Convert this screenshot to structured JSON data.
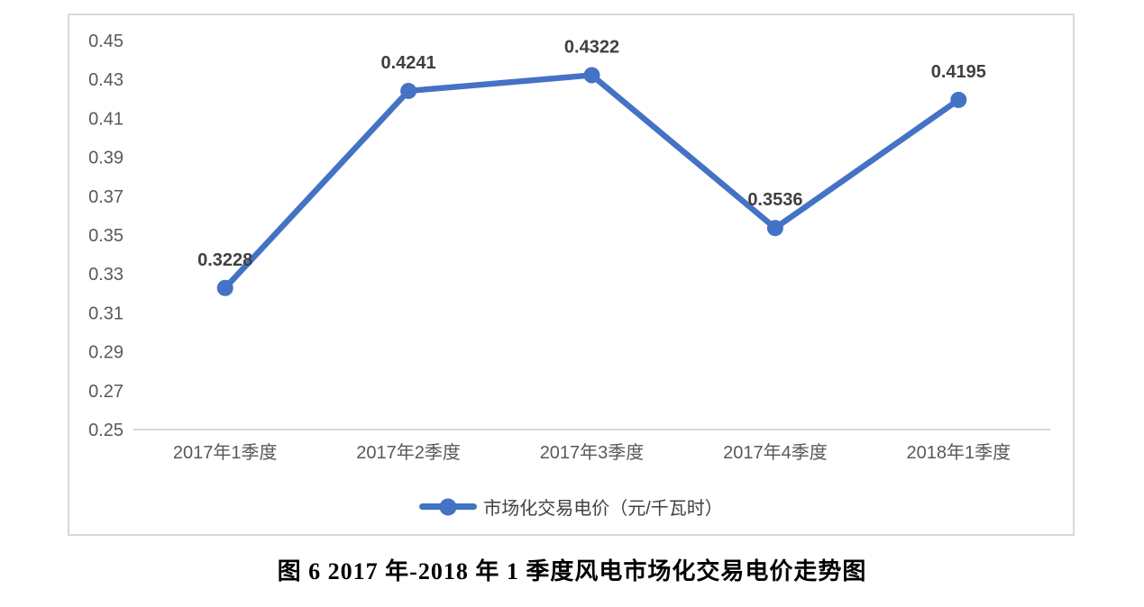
{
  "chart_data": {
    "type": "line",
    "categories": [
      "2017年1季度",
      "2017年2季度",
      "2017年3季度",
      "2017年4季度",
      "2018年1季度"
    ],
    "series": [
      {
        "name": "市场化交易电价（元/千瓦时）",
        "values": [
          0.3228,
          0.4241,
          0.4322,
          0.3536,
          0.4195
        ],
        "data_labels": [
          "0.3228",
          "0.4241",
          "0.4322",
          "0.3536",
          "0.4195"
        ]
      }
    ],
    "ylim": [
      0.25,
      0.45
    ],
    "ytick_step": 0.02,
    "yticks": [
      "0.45",
      "0.43",
      "0.41",
      "0.39",
      "0.37",
      "0.35",
      "0.33",
      "0.31",
      "0.29",
      "0.27",
      "0.25"
    ],
    "grid": false,
    "legend_position": "bottom",
    "colors": {
      "line": "#4472C4",
      "marker": "#4472C4",
      "axis_line": "#d9d9d9",
      "tick_label": "#595959",
      "data_label": "#404040"
    }
  },
  "legend": {
    "label": "市场化交易电价（元/千瓦时）"
  },
  "caption": "图 6 2017 年-2018 年 1 季度风电市场化交易电价走势图"
}
